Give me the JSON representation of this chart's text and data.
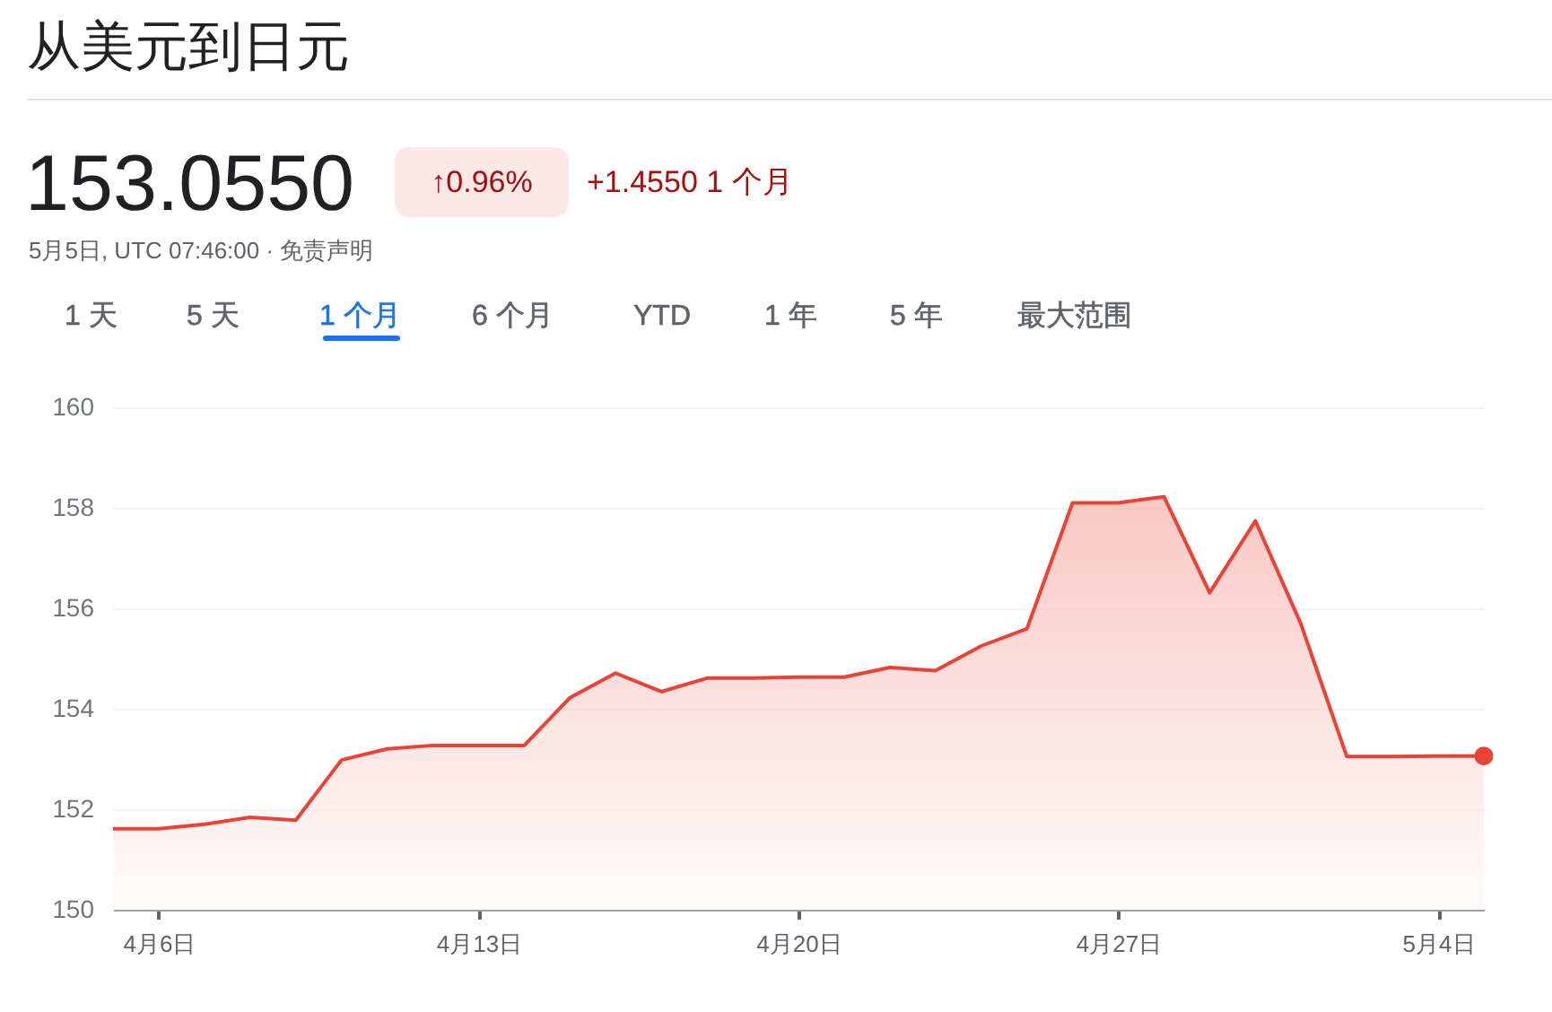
{
  "chart_data": {
    "type": "area",
    "title": "从美元到日元",
    "annotations": [
      "153.0550",
      "↑0.96%",
      "+1.4550 1 个月",
      "5月5日, UTC 07:46:00 · 免责声明",
      "1 天",
      "5 天",
      "1 个月",
      "6 个月",
      "YTD",
      "1 年",
      "5 年",
      "最大范围"
    ],
    "x": [
      "--04-05",
      "--04-06",
      "--04-07",
      "--04-08",
      "--04-09",
      "--04-10",
      "--04-11",
      "--04-12",
      "--04-13",
      "--04-14",
      "--04-15",
      "--04-16",
      "--04-17",
      "--04-18",
      "--04-19",
      "--04-20",
      "--04-21",
      "--04-22",
      "--04-23",
      "--04-24",
      "--04-25",
      "--04-26",
      "--04-27",
      "--04-28",
      "--04-29",
      "--04-30",
      "--05-01",
      "--05-02",
      "--05-03",
      "--05-04",
      "--05-05"
    ],
    "xlim": [
      "--04-05",
      "--05-05"
    ],
    "xticks": [
      {
        "value": "--04-06",
        "label": "4月6日"
      },
      {
        "value": "--04-13",
        "label": "4月13日"
      },
      {
        "value": "--04-20",
        "label": "4月20日"
      },
      {
        "value": "--04-27",
        "label": "4月27日"
      },
      {
        "value": "--05-04",
        "label": "5月4日"
      }
    ],
    "ylim": [
      150,
      160
    ],
    "yticks": [
      150,
      152,
      154,
      156,
      158,
      160
    ],
    "grid": "y",
    "series": [
      {
        "color": "#ea4335",
        "values": [
          151.61,
          151.61,
          151.7,
          151.84,
          151.78,
          152.98,
          153.2,
          153.27,
          153.27,
          153.27,
          154.22,
          154.71,
          154.34,
          154.61,
          154.61,
          154.63,
          154.63,
          154.82,
          154.76,
          155.25,
          155.59,
          158.1,
          158.1,
          158.22,
          156.31,
          157.74,
          155.68,
          153.05,
          153.05,
          153.06,
          153.06
        ]
      },
      {
        "type": "scatter",
        "color": "#ea4335",
        "x": [
          "--05-05"
        ],
        "values": [
          153.06
        ]
      }
    ]
  }
}
